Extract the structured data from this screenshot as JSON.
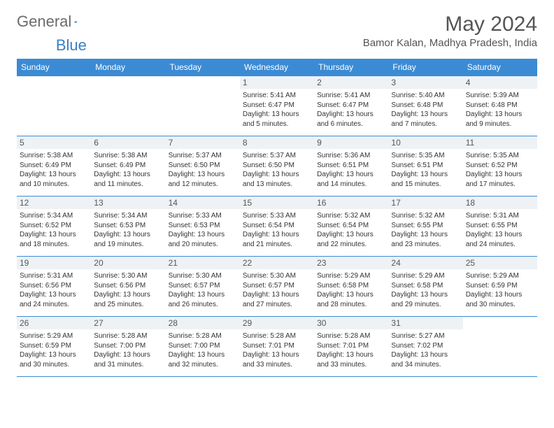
{
  "logo": {
    "text_a": "General",
    "text_b": "Blue"
  },
  "header": {
    "month_title": "May 2024",
    "location": "Bamor Kalan, Madhya Pradesh, India"
  },
  "colors": {
    "header_bg": "#3b8bd4",
    "header_text": "#ffffff",
    "border": "#3b8bd4",
    "daynum_bg": "#eef2f5",
    "body_text": "#333333",
    "logo_gray": "#6b6b6b",
    "logo_blue": "#3b7fc4"
  },
  "weekdays": [
    "Sunday",
    "Monday",
    "Tuesday",
    "Wednesday",
    "Thursday",
    "Friday",
    "Saturday"
  ],
  "weeks": [
    [
      {
        "day": "",
        "sunrise": "",
        "sunset": "",
        "daylight": ""
      },
      {
        "day": "",
        "sunrise": "",
        "sunset": "",
        "daylight": ""
      },
      {
        "day": "",
        "sunrise": "",
        "sunset": "",
        "daylight": ""
      },
      {
        "day": "1",
        "sunrise": "Sunrise: 5:41 AM",
        "sunset": "Sunset: 6:47 PM",
        "daylight": "Daylight: 13 hours and 5 minutes."
      },
      {
        "day": "2",
        "sunrise": "Sunrise: 5:41 AM",
        "sunset": "Sunset: 6:47 PM",
        "daylight": "Daylight: 13 hours and 6 minutes."
      },
      {
        "day": "3",
        "sunrise": "Sunrise: 5:40 AM",
        "sunset": "Sunset: 6:48 PM",
        "daylight": "Daylight: 13 hours and 7 minutes."
      },
      {
        "day": "4",
        "sunrise": "Sunrise: 5:39 AM",
        "sunset": "Sunset: 6:48 PM",
        "daylight": "Daylight: 13 hours and 9 minutes."
      }
    ],
    [
      {
        "day": "5",
        "sunrise": "Sunrise: 5:38 AM",
        "sunset": "Sunset: 6:49 PM",
        "daylight": "Daylight: 13 hours and 10 minutes."
      },
      {
        "day": "6",
        "sunrise": "Sunrise: 5:38 AM",
        "sunset": "Sunset: 6:49 PM",
        "daylight": "Daylight: 13 hours and 11 minutes."
      },
      {
        "day": "7",
        "sunrise": "Sunrise: 5:37 AM",
        "sunset": "Sunset: 6:50 PM",
        "daylight": "Daylight: 13 hours and 12 minutes."
      },
      {
        "day": "8",
        "sunrise": "Sunrise: 5:37 AM",
        "sunset": "Sunset: 6:50 PM",
        "daylight": "Daylight: 13 hours and 13 minutes."
      },
      {
        "day": "9",
        "sunrise": "Sunrise: 5:36 AM",
        "sunset": "Sunset: 6:51 PM",
        "daylight": "Daylight: 13 hours and 14 minutes."
      },
      {
        "day": "10",
        "sunrise": "Sunrise: 5:35 AM",
        "sunset": "Sunset: 6:51 PM",
        "daylight": "Daylight: 13 hours and 15 minutes."
      },
      {
        "day": "11",
        "sunrise": "Sunrise: 5:35 AM",
        "sunset": "Sunset: 6:52 PM",
        "daylight": "Daylight: 13 hours and 17 minutes."
      }
    ],
    [
      {
        "day": "12",
        "sunrise": "Sunrise: 5:34 AM",
        "sunset": "Sunset: 6:52 PM",
        "daylight": "Daylight: 13 hours and 18 minutes."
      },
      {
        "day": "13",
        "sunrise": "Sunrise: 5:34 AM",
        "sunset": "Sunset: 6:53 PM",
        "daylight": "Daylight: 13 hours and 19 minutes."
      },
      {
        "day": "14",
        "sunrise": "Sunrise: 5:33 AM",
        "sunset": "Sunset: 6:53 PM",
        "daylight": "Daylight: 13 hours and 20 minutes."
      },
      {
        "day": "15",
        "sunrise": "Sunrise: 5:33 AM",
        "sunset": "Sunset: 6:54 PM",
        "daylight": "Daylight: 13 hours and 21 minutes."
      },
      {
        "day": "16",
        "sunrise": "Sunrise: 5:32 AM",
        "sunset": "Sunset: 6:54 PM",
        "daylight": "Daylight: 13 hours and 22 minutes."
      },
      {
        "day": "17",
        "sunrise": "Sunrise: 5:32 AM",
        "sunset": "Sunset: 6:55 PM",
        "daylight": "Daylight: 13 hours and 23 minutes."
      },
      {
        "day": "18",
        "sunrise": "Sunrise: 5:31 AM",
        "sunset": "Sunset: 6:55 PM",
        "daylight": "Daylight: 13 hours and 24 minutes."
      }
    ],
    [
      {
        "day": "19",
        "sunrise": "Sunrise: 5:31 AM",
        "sunset": "Sunset: 6:56 PM",
        "daylight": "Daylight: 13 hours and 24 minutes."
      },
      {
        "day": "20",
        "sunrise": "Sunrise: 5:30 AM",
        "sunset": "Sunset: 6:56 PM",
        "daylight": "Daylight: 13 hours and 25 minutes."
      },
      {
        "day": "21",
        "sunrise": "Sunrise: 5:30 AM",
        "sunset": "Sunset: 6:57 PM",
        "daylight": "Daylight: 13 hours and 26 minutes."
      },
      {
        "day": "22",
        "sunrise": "Sunrise: 5:30 AM",
        "sunset": "Sunset: 6:57 PM",
        "daylight": "Daylight: 13 hours and 27 minutes."
      },
      {
        "day": "23",
        "sunrise": "Sunrise: 5:29 AM",
        "sunset": "Sunset: 6:58 PM",
        "daylight": "Daylight: 13 hours and 28 minutes."
      },
      {
        "day": "24",
        "sunrise": "Sunrise: 5:29 AM",
        "sunset": "Sunset: 6:58 PM",
        "daylight": "Daylight: 13 hours and 29 minutes."
      },
      {
        "day": "25",
        "sunrise": "Sunrise: 5:29 AM",
        "sunset": "Sunset: 6:59 PM",
        "daylight": "Daylight: 13 hours and 30 minutes."
      }
    ],
    [
      {
        "day": "26",
        "sunrise": "Sunrise: 5:29 AM",
        "sunset": "Sunset: 6:59 PM",
        "daylight": "Daylight: 13 hours and 30 minutes."
      },
      {
        "day": "27",
        "sunrise": "Sunrise: 5:28 AM",
        "sunset": "Sunset: 7:00 PM",
        "daylight": "Daylight: 13 hours and 31 minutes."
      },
      {
        "day": "28",
        "sunrise": "Sunrise: 5:28 AM",
        "sunset": "Sunset: 7:00 PM",
        "daylight": "Daylight: 13 hours and 32 minutes."
      },
      {
        "day": "29",
        "sunrise": "Sunrise: 5:28 AM",
        "sunset": "Sunset: 7:01 PM",
        "daylight": "Daylight: 13 hours and 33 minutes."
      },
      {
        "day": "30",
        "sunrise": "Sunrise: 5:28 AM",
        "sunset": "Sunset: 7:01 PM",
        "daylight": "Daylight: 13 hours and 33 minutes."
      },
      {
        "day": "31",
        "sunrise": "Sunrise: 5:27 AM",
        "sunset": "Sunset: 7:02 PM",
        "daylight": "Daylight: 13 hours and 34 minutes."
      },
      {
        "day": "",
        "sunrise": "",
        "sunset": "",
        "daylight": ""
      }
    ]
  ]
}
